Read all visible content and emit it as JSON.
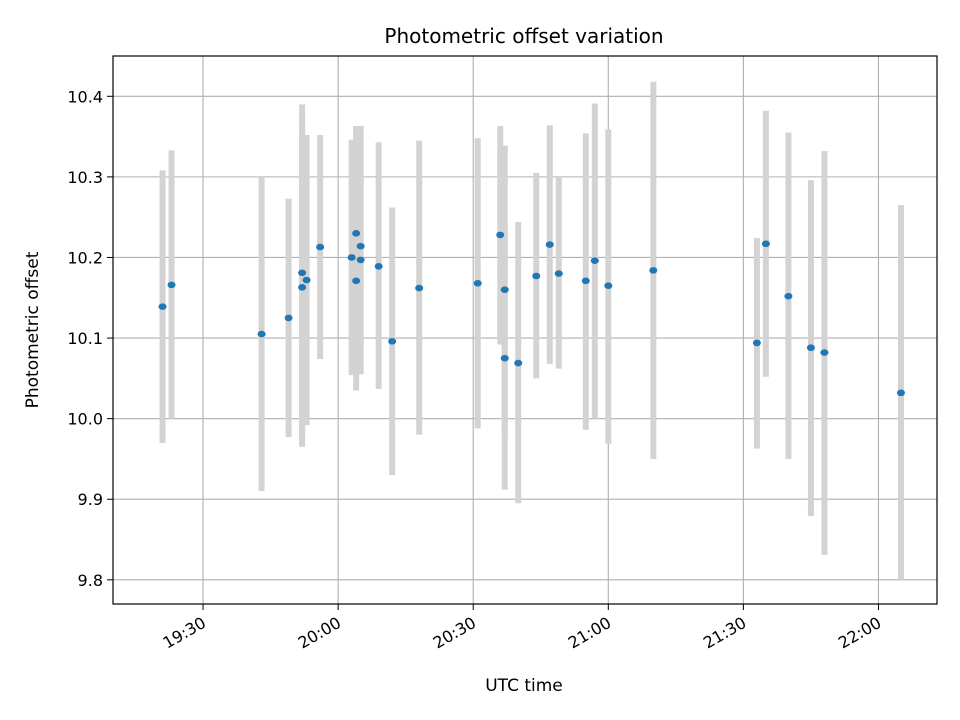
{
  "chart_data": {
    "type": "scatter",
    "title": "Photometric offset variation",
    "xlabel": "UTC time",
    "ylabel": "Photometric offset",
    "x_ticks": [
      "19:30",
      "20:00",
      "20:30",
      "21:00",
      "21:30",
      "22:00"
    ],
    "y_ticks": [
      "9.8",
      "9.9",
      "10.0",
      "10.1",
      "10.2",
      "10.3",
      "10.4"
    ],
    "xlim": [
      "19:10",
      "22:13"
    ],
    "ylim": [
      9.77,
      10.45
    ],
    "grid": true,
    "errorbar_color": "#d3d3d3",
    "marker_color": "#1f77b4",
    "series": [
      {
        "points": [
          {
            "x": "19:21",
            "y": 10.139,
            "ylo": 9.97,
            "yhi": 10.308
          },
          {
            "x": "19:23",
            "y": 10.166,
            "ylo": 10.0,
            "yhi": 10.333
          },
          {
            "x": "19:43",
            "y": 10.105,
            "ylo": 9.91,
            "yhi": 10.3
          },
          {
            "x": "19:49",
            "y": 10.125,
            "ylo": 9.977,
            "yhi": 10.273
          },
          {
            "x": "19:52",
            "y": 10.181,
            "ylo": 9.972,
            "yhi": 10.39
          },
          {
            "x": "19:52",
            "y": 10.163,
            "ylo": 9.965,
            "yhi": 10.36
          },
          {
            "x": "19:53",
            "y": 10.172,
            "ylo": 9.992,
            "yhi": 10.352
          },
          {
            "x": "19:56",
            "y": 10.213,
            "ylo": 10.074,
            "yhi": 10.352
          },
          {
            "x": "20:03",
            "y": 10.2,
            "ylo": 10.054,
            "yhi": 10.346
          },
          {
            "x": "20:04",
            "y": 10.171,
            "ylo": 10.035,
            "yhi": 10.363
          },
          {
            "x": "20:04",
            "y": 10.23,
            "ylo": 10.096,
            "yhi": 10.363
          },
          {
            "x": "20:05",
            "y": 10.197,
            "ylo": 10.055,
            "yhi": 10.363
          },
          {
            "x": "20:05",
            "y": 10.214,
            "ylo": 10.065,
            "yhi": 10.363
          },
          {
            "x": "20:09",
            "y": 10.189,
            "ylo": 10.037,
            "yhi": 10.343
          },
          {
            "x": "20:12",
            "y": 10.096,
            "ylo": 9.93,
            "yhi": 10.262
          },
          {
            "x": "20:18",
            "y": 10.162,
            "ylo": 9.98,
            "yhi": 10.345
          },
          {
            "x": "20:31",
            "y": 10.168,
            "ylo": 9.988,
            "yhi": 10.348
          },
          {
            "x": "20:36",
            "y": 10.228,
            "ylo": 10.092,
            "yhi": 10.363
          },
          {
            "x": "20:37",
            "y": 10.16,
            "ylo": 9.982,
            "yhi": 10.339
          },
          {
            "x": "20:37",
            "y": 10.075,
            "ylo": 9.912,
            "yhi": 10.239
          },
          {
            "x": "20:40",
            "y": 10.069,
            "ylo": 9.895,
            "yhi": 10.244
          },
          {
            "x": "20:44",
            "y": 10.177,
            "ylo": 10.05,
            "yhi": 10.305
          },
          {
            "x": "20:47",
            "y": 10.216,
            "ylo": 10.068,
            "yhi": 10.364
          },
          {
            "x": "20:49",
            "y": 10.18,
            "ylo": 10.062,
            "yhi": 10.3
          },
          {
            "x": "20:55",
            "y": 10.171,
            "ylo": 9.986,
            "yhi": 10.354
          },
          {
            "x": "20:57",
            "y": 10.196,
            "ylo": 10.0,
            "yhi": 10.391
          },
          {
            "x": "21:00",
            "y": 10.165,
            "ylo": 9.969,
            "yhi": 10.359
          },
          {
            "x": "21:10",
            "y": 10.184,
            "ylo": 9.95,
            "yhi": 10.418
          },
          {
            "x": "21:33",
            "y": 10.094,
            "ylo": 9.963,
            "yhi": 10.224
          },
          {
            "x": "21:35",
            "y": 10.217,
            "ylo": 10.052,
            "yhi": 10.382
          },
          {
            "x": "21:40",
            "y": 10.152,
            "ylo": 9.95,
            "yhi": 10.355
          },
          {
            "x": "21:45",
            "y": 10.088,
            "ylo": 9.879,
            "yhi": 10.296
          },
          {
            "x": "21:48",
            "y": 10.082,
            "ylo": 9.831,
            "yhi": 10.332
          },
          {
            "x": "22:05",
            "y": 10.032,
            "ylo": 9.8,
            "yhi": 10.265
          }
        ]
      }
    ]
  }
}
